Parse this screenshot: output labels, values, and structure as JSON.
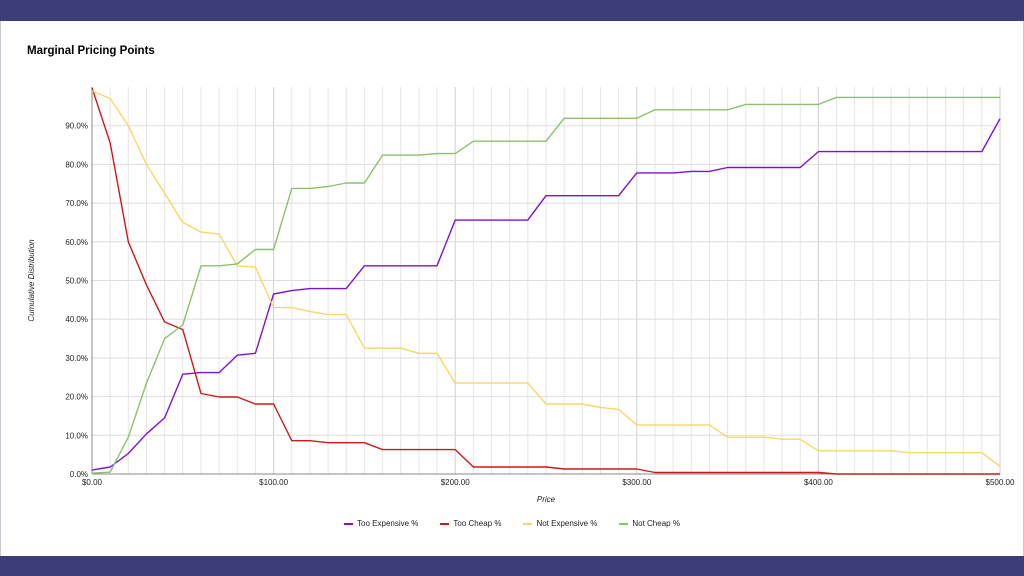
{
  "chart_data": {
    "type": "line",
    "title": "Marginal Pricing Points",
    "xlabel": "Price",
    "ylabel": "Cumulative Distribution",
    "xlim": [
      0,
      500
    ],
    "ylim": [
      0,
      100
    ],
    "x_ticks": [
      "$0.00",
      "$100.00",
      "$200.00",
      "$300.00",
      "$400.00",
      "$500.00"
    ],
    "y_ticks": [
      "0.0%",
      "10.0%",
      "20.0%",
      "30.0%",
      "40.0%",
      "50.0%",
      "60.0%",
      "70.0%",
      "80.0%",
      "90.0%"
    ],
    "grid": true,
    "legend_position": "bottom",
    "x": [
      0,
      10,
      20,
      30,
      40,
      50,
      60,
      70,
      80,
      90,
      100,
      110,
      120,
      130,
      140,
      150,
      160,
      170,
      180,
      190,
      200,
      210,
      220,
      230,
      240,
      250,
      260,
      270,
      280,
      290,
      300,
      310,
      320,
      330,
      340,
      350,
      360,
      370,
      380,
      390,
      400,
      410,
      420,
      430,
      440,
      450,
      460,
      470,
      480,
      490,
      500
    ],
    "series": [
      {
        "name": "Too Expensive %",
        "color": "#7b12d6",
        "values": [
          1.0,
          1.8,
          5.3,
          10.4,
          14.5,
          25.8,
          26.2,
          26.2,
          30.7,
          31.2,
          46.5,
          47.4,
          47.9,
          47.9,
          47.9,
          53.8,
          53.8,
          53.8,
          53.8,
          53.8,
          65.6,
          65.6,
          65.6,
          65.6,
          65.6,
          71.9,
          71.9,
          71.9,
          71.9,
          71.9,
          77.8,
          77.8,
          77.8,
          78.2,
          78.2,
          79.2,
          79.2,
          79.2,
          79.2,
          79.2,
          83.3,
          83.3,
          83.3,
          83.3,
          83.3,
          83.3,
          83.3,
          83.3,
          83.3,
          83.3,
          91.8
        ]
      },
      {
        "name": "Too Cheap %",
        "color": "#cc1a1a",
        "values": [
          99.8,
          85.5,
          60.0,
          48.8,
          39.3,
          37.3,
          20.8,
          19.9,
          19.9,
          18.1,
          18.1,
          8.6,
          8.6,
          8.1,
          8.1,
          8.1,
          6.3,
          6.3,
          6.3,
          6.3,
          6.3,
          1.8,
          1.8,
          1.8,
          1.8,
          1.8,
          1.3,
          1.3,
          1.3,
          1.3,
          1.3,
          0.4,
          0.4,
          0.4,
          0.4,
          0.4,
          0.4,
          0.4,
          0.4,
          0.4,
          0.4,
          0.0,
          0.0,
          0.0,
          0.0,
          0.0,
          0.0,
          0.0,
          0.0,
          0.0,
          0.0
        ]
      },
      {
        "name": "Not Expensive %",
        "color": "#f5d866",
        "values": [
          99.0,
          97.0,
          90.0,
          80.0,
          72.5,
          65.0,
          62.5,
          62.0,
          53.8,
          53.5,
          43.0,
          43.0,
          42.0,
          41.2,
          41.2,
          32.5,
          32.5,
          32.5,
          31.2,
          31.2,
          23.5,
          23.5,
          23.5,
          23.5,
          23.5,
          18.1,
          18.1,
          18.1,
          17.2,
          16.7,
          12.7,
          12.7,
          12.7,
          12.7,
          12.7,
          9.5,
          9.5,
          9.5,
          9.0,
          9.0,
          6.0,
          6.0,
          6.0,
          6.0,
          6.0,
          5.5,
          5.5,
          5.5,
          5.5,
          5.5,
          2.0
        ]
      },
      {
        "name": "Not Cheap %",
        "color": "#8ec06c",
        "values": [
          0.2,
          0.5,
          9.5,
          23.5,
          35.0,
          38.5,
          53.8,
          53.8,
          54.3,
          58.0,
          58.0,
          73.8,
          73.8,
          74.3,
          75.2,
          75.2,
          82.4,
          82.4,
          82.4,
          82.8,
          82.8,
          86.0,
          86.0,
          86.0,
          86.0,
          86.0,
          91.9,
          91.9,
          91.9,
          91.9,
          91.9,
          94.1,
          94.1,
          94.1,
          94.1,
          94.1,
          95.5,
          95.5,
          95.5,
          95.5,
          95.5,
          97.3,
          97.3,
          97.3,
          97.3,
          97.3,
          97.3,
          97.3,
          97.3,
          97.3,
          97.3
        ]
      }
    ]
  }
}
